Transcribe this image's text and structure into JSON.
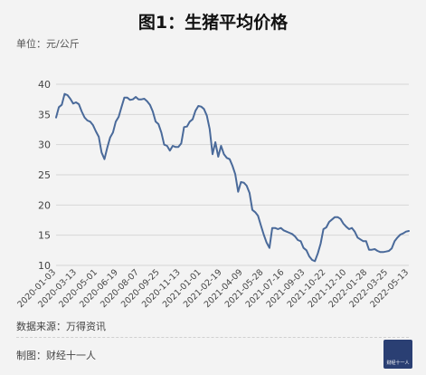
{
  "header": {
    "title": "图1：生猪平均价格",
    "unit": "单位：元/公斤"
  },
  "footer": {
    "source": "数据来源：万得资讯",
    "maker": "制图：财经十一人",
    "logo_text": "财经十一人"
  },
  "colors": {
    "line": "#4a6a9a",
    "grid": "#d6d6d6",
    "logo_bg": "#2a3f73"
  },
  "chart_data": {
    "type": "line",
    "title": "图1：生猪平均价格",
    "ylabel": "单位：元/公斤",
    "ylim": [
      10,
      40
    ],
    "yticks": [
      10,
      15,
      20,
      25,
      30,
      35,
      40
    ],
    "grid": true,
    "xtick_labels": [
      "2020-01-03",
      "2020-03-13",
      "2020-05-01",
      "2020-06-19",
      "2020-08-07",
      "2020-09-25",
      "2020-11-13",
      "2021-01-01",
      "2021-02-19",
      "2021-04-09",
      "2021-05-28",
      "2021-07-16",
      "2021-09-03",
      "2021-10-22",
      "2021-12-10",
      "2022-01-28",
      "2022-03-25",
      "2022-05-13"
    ],
    "values": [
      34.5,
      36.2,
      36.6,
      38.4,
      38.2,
      37.6,
      36.8,
      37.0,
      36.7,
      35.5,
      34.5,
      34.0,
      33.8,
      33.2,
      32.2,
      31.3,
      28.7,
      27.6,
      29.5,
      31.2,
      32.0,
      33.8,
      34.6,
      36.2,
      37.8,
      37.8,
      37.4,
      37.5,
      37.9,
      37.5,
      37.5,
      37.6,
      37.2,
      36.6,
      35.5,
      33.8,
      33.4,
      32.0,
      30.0,
      29.8,
      29.0,
      29.8,
      29.6,
      29.6,
      30.2,
      32.9,
      33.0,
      33.8,
      34.2,
      35.6,
      36.4,
      36.3,
      35.9,
      34.8,
      32.6,
      28.4,
      30.4,
      28.0,
      29.8,
      28.4,
      27.8,
      27.6,
      26.5,
      25.1,
      22.2,
      23.8,
      23.7,
      23.2,
      22.0,
      19.2,
      18.8,
      18.2,
      16.6,
      15.1,
      13.8,
      12.9,
      16.2,
      16.2,
      16.0,
      16.2,
      15.8,
      15.6,
      15.4,
      15.2,
      14.8,
      14.2,
      14.0,
      12.9,
      12.5,
      11.5,
      10.9,
      10.7,
      12.0,
      13.6,
      16.0,
      16.3,
      17.2,
      17.6,
      18.0,
      18.0,
      17.7,
      16.9,
      16.4,
      16.0,
      16.2,
      15.6,
      14.6,
      14.3,
      14.0,
      14.0,
      12.6,
      12.6,
      12.7,
      12.4,
      12.2,
      12.2,
      12.3,
      12.4,
      12.8,
      14.0,
      14.6,
      15.1,
      15.3,
      15.6,
      15.7
    ]
  }
}
